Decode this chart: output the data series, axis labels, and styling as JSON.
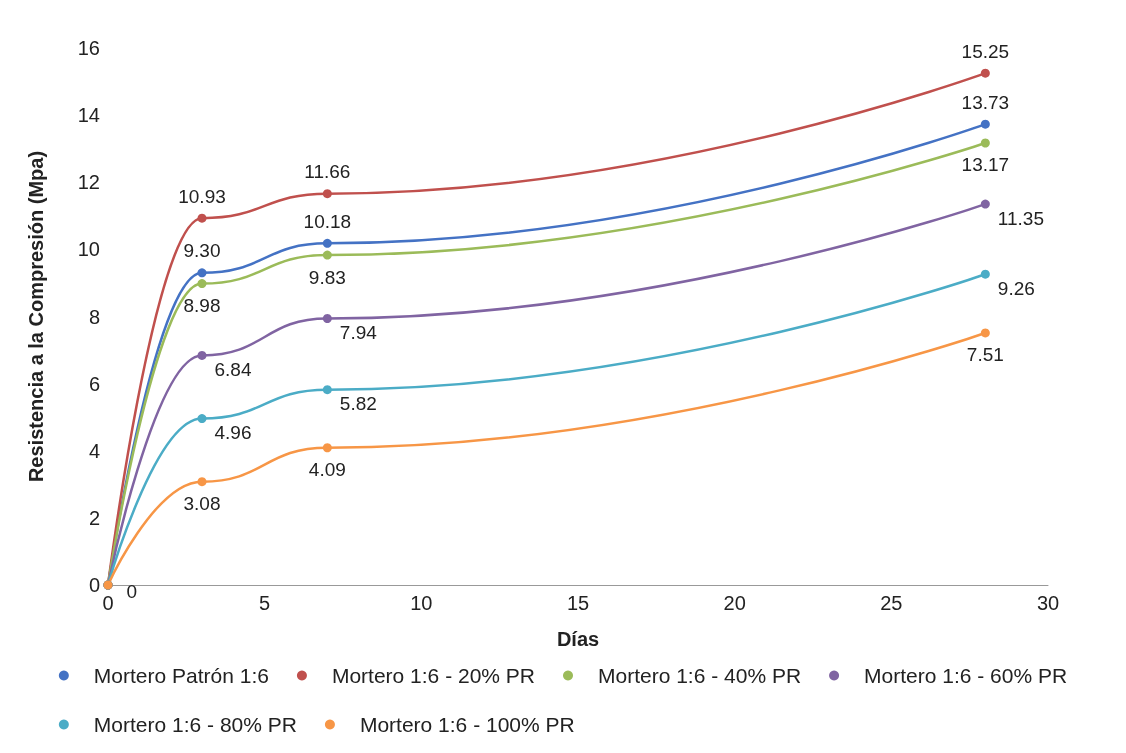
{
  "chart_data": {
    "type": "line",
    "xlabel": "Días",
    "ylabel": "Resistencia a la Compresión (Mpa)",
    "x": [
      0,
      3,
      7,
      28
    ],
    "series": [
      {
        "name": "Mortero Patrón 1:6",
        "color": "#4472c4",
        "values": [
          0,
          9.3,
          10.18,
          13.73
        ],
        "value_labels": [
          null,
          "9.30",
          "10.18",
          "13.73"
        ]
      },
      {
        "name": "Mortero 1:6 - 20% PR",
        "color": "#c0504d",
        "values": [
          0,
          10.93,
          11.66,
          15.25
        ],
        "value_labels": [
          null,
          "10.93",
          "11.66",
          "15.25"
        ]
      },
      {
        "name": "Mortero 1:6 - 40% PR",
        "color": "#9bbb59",
        "values": [
          0,
          8.98,
          9.83,
          13.17
        ],
        "value_labels": [
          null,
          "8.98",
          "9.83",
          "13.17"
        ]
      },
      {
        "name": "Mortero 1:6 - 60% PR",
        "color": "#8064a2",
        "values": [
          0,
          6.84,
          7.94,
          11.35
        ],
        "value_labels": [
          null,
          "6.84",
          "7.94",
          "11.35"
        ]
      },
      {
        "name": "Mortero 1:6 - 80% PR",
        "color": "#4bacc6",
        "values": [
          0,
          4.96,
          5.82,
          9.26
        ],
        "value_labels": [
          null,
          "4.96",
          "5.82",
          "9.26"
        ]
      },
      {
        "name": "Mortero 1:6 - 100% PR",
        "color": "#f79646",
        "values": [
          0,
          3.08,
          4.09,
          7.51
        ],
        "value_labels": [
          "0",
          "3.08",
          "4.09",
          "7.51"
        ]
      }
    ],
    "xlim": [
      0,
      30
    ],
    "xticks": [
      0,
      5,
      10,
      15,
      20,
      25,
      30
    ],
    "ylim": [
      0,
      16
    ],
    "yticks": [
      0,
      2,
      4,
      6,
      8,
      10,
      12,
      14,
      16
    ],
    "grid": false,
    "legend": "bottom",
    "marker": "circle",
    "line_style": "solid"
  }
}
